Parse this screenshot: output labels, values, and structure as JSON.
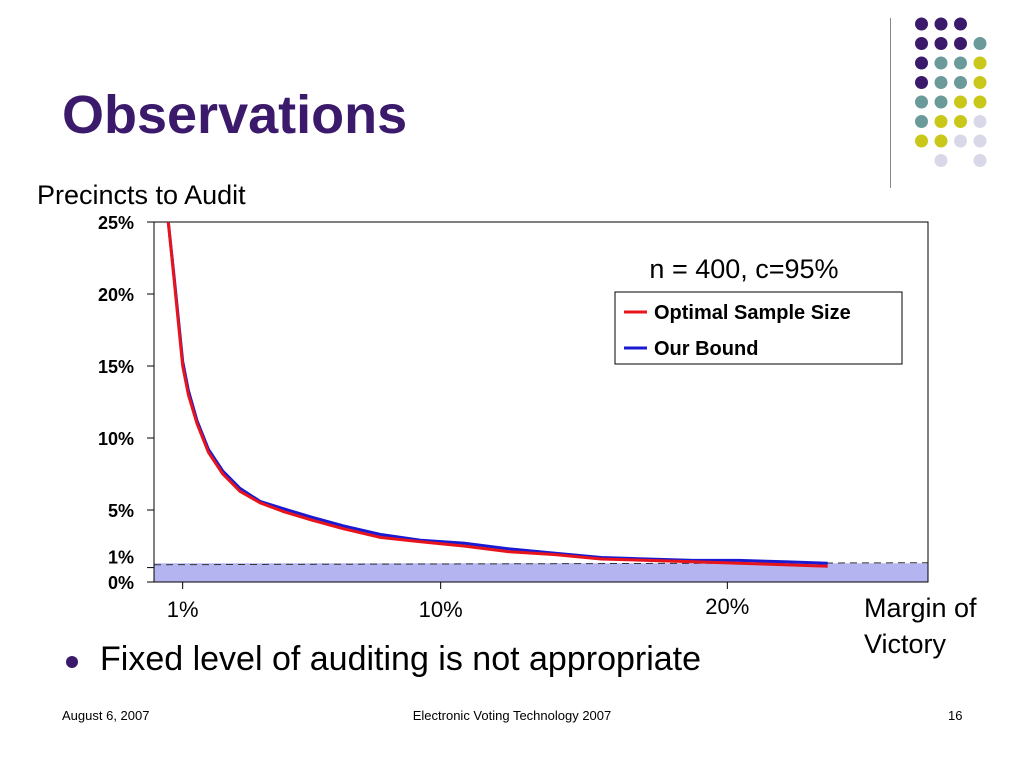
{
  "slide": {
    "title": "Observations",
    "bullet": "Fixed level of auditing is not appropriate",
    "footer_left": "August 6, 2007",
    "footer_center": "Electronic Voting Technology 2007",
    "footer_right": "16"
  },
  "decoration": {
    "dot_colors": {
      "purple": "#3b1a6b",
      "teal": "#6b9a9b",
      "yellow": "#c9c81a",
      "lavender": "#d9d8e8"
    },
    "dot_grid": [
      [
        "",
        "purple",
        "purple",
        "purple",
        ""
      ],
      [
        "",
        "purple",
        "purple",
        "purple",
        "teal"
      ],
      [
        "",
        "purple",
        "teal",
        "teal",
        "yellow"
      ],
      [
        "",
        "purple",
        "teal",
        "teal",
        "yellow"
      ],
      [
        "",
        "teal",
        "teal",
        "yellow",
        "yellow"
      ],
      [
        "",
        "teal",
        "yellow",
        "yellow",
        "lavender"
      ],
      [
        "",
        "yellow",
        "yellow",
        "lavender",
        "lavender"
      ],
      [
        "",
        "",
        "lavender",
        "",
        "lavender"
      ]
    ]
  },
  "chart_data": {
    "type": "line",
    "annotation": "n = 400, c=95%",
    "ylabel": "Precincts to Audit",
    "xlabel": "Margin of Victory",
    "xlim": [
      0,
      27
    ],
    "ylim": [
      0,
      25
    ],
    "x_ticks": [
      {
        "value": 1,
        "label": "1%"
      },
      {
        "value": 10,
        "label": "10%"
      },
      {
        "value": 20,
        "label": "20%"
      }
    ],
    "y_ticks": [
      {
        "value": 0,
        "label": "0%"
      },
      {
        "value": 1,
        "label": "1%"
      },
      {
        "value": 5,
        "label": "5%"
      },
      {
        "value": 10,
        "label": "10%"
      },
      {
        "value": 15,
        "label": "15%"
      },
      {
        "value": 20,
        "label": "20%"
      },
      {
        "value": 25,
        "label": "25%"
      }
    ],
    "baseline": {
      "value": 1.2,
      "shade_to": 1.3,
      "color": "#b4b4f0"
    },
    "legend": "top-right",
    "series": [
      {
        "name": "Optimal Sample Size",
        "color": "#e8141c",
        "x": [
          0.5,
          0.7,
          0.9,
          1.0,
          1.2,
          1.5,
          1.9,
          2.4,
          3.0,
          3.7,
          4.5,
          5.5,
          6.6,
          7.9,
          9.3,
          10.8,
          12.4,
          14.0,
          15.6,
          17.2,
          18.8,
          20.4,
          22.0,
          23.5
        ],
        "values": [
          25,
          21,
          17,
          15,
          13,
          11,
          9,
          7.5,
          6.3,
          5.5,
          4.9,
          4.3,
          3.7,
          3.1,
          2.8,
          2.5,
          2.1,
          1.9,
          1.6,
          1.5,
          1.4,
          1.3,
          1.2,
          1.1
        ]
      },
      {
        "name": "Our Bound",
        "color": "#1a1ad2",
        "x": [
          0.5,
          0.7,
          0.9,
          1.0,
          1.2,
          1.5,
          1.9,
          2.4,
          3.0,
          3.7,
          4.5,
          5.5,
          6.6,
          7.9,
          9.3,
          10.8,
          12.4,
          14.0,
          15.6,
          17.2,
          18.8,
          20.4,
          22.0,
          23.5
        ],
        "values": [
          25,
          21.2,
          17.3,
          15.3,
          13.3,
          11.2,
          9.2,
          7.7,
          6.5,
          5.6,
          5.1,
          4.5,
          3.9,
          3.3,
          2.9,
          2.7,
          2.3,
          2.0,
          1.7,
          1.6,
          1.5,
          1.5,
          1.4,
          1.3
        ]
      }
    ]
  }
}
